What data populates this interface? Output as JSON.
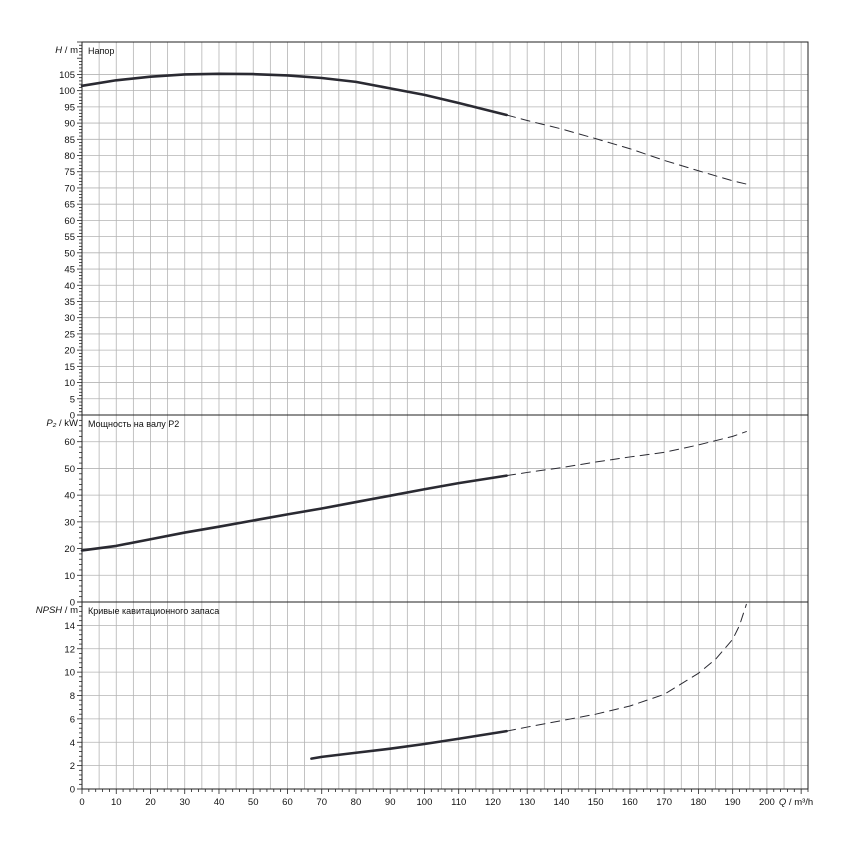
{
  "chart_data": {
    "type": "line",
    "grid": true,
    "x_axis": {
      "label_symbol": "Q",
      "label_unit": "m³/h",
      "range": [
        0,
        212
      ],
      "ticks": [
        0,
        10,
        20,
        30,
        40,
        50,
        60,
        70,
        80,
        90,
        100,
        110,
        120,
        130,
        140,
        150,
        160,
        170,
        180,
        190,
        200
      ],
      "tick_labels": [
        "0",
        "10",
        "20",
        "30",
        "40",
        "50",
        "60",
        "70",
        "80",
        "90",
        "100",
        "110",
        "120",
        "130",
        "140",
        "150",
        "160",
        "170",
        "180",
        "190",
        "200"
      ]
    },
    "panels": [
      {
        "id": "head",
        "title": "Напор",
        "y_symbol": "H",
        "y_unit": "m",
        "ylim": [
          0,
          115
        ],
        "yticks": [
          0,
          5,
          10,
          15,
          20,
          25,
          30,
          35,
          40,
          45,
          50,
          55,
          60,
          65,
          70,
          75,
          80,
          85,
          90,
          95,
          100,
          105
        ],
        "ytick_labels": [
          "0",
          "5",
          "10",
          "15",
          "20",
          "25",
          "30",
          "35",
          "40",
          "45",
          "50",
          "55",
          "60",
          "65",
          "70",
          "75",
          "80",
          "85",
          "90",
          "95",
          "100",
          "105"
        ],
        "series": [
          {
            "style": "solid",
            "x": [
              0,
              10,
              20,
              30,
              40,
              50,
              60,
              70,
              80,
              90,
              100,
              110,
              124
            ],
            "y": [
              101.5,
              103.2,
              104.3,
              105.0,
              105.2,
              105.1,
              104.7,
              103.9,
              102.7,
              100.7,
              98.7,
              96.2,
              92.5
            ]
          },
          {
            "style": "dashed",
            "x": [
              124,
              130,
              140,
              150,
              160,
              170,
              180,
              190,
              194
            ],
            "y": [
              92.5,
              90.8,
              88.2,
              85.2,
              82.1,
              78.5,
              75.3,
              72.2,
              71.2
            ]
          }
        ]
      },
      {
        "id": "power",
        "title": "Мощность на валу P2",
        "y_symbol": "P₂",
        "y_unit": "kW",
        "ylim": [
          0,
          70
        ],
        "yticks": [
          0,
          10,
          20,
          30,
          40,
          50,
          60
        ],
        "ytick_labels": [
          "0",
          "10",
          "20",
          "30",
          "40",
          "50",
          "60"
        ],
        "series": [
          {
            "style": "solid",
            "x": [
              0,
              10,
              20,
              30,
              40,
              50,
              60,
              70,
              80,
              90,
              100,
              110,
              124
            ],
            "y": [
              19.3,
              21.0,
              23.5,
              26.0,
              28.2,
              30.5,
              32.8,
              35.0,
              37.4,
              39.8,
              42.2,
              44.5,
              47.3
            ]
          },
          {
            "style": "dashed",
            "x": [
              124,
              130,
              140,
              150,
              160,
              170,
              180,
              190,
              194
            ],
            "y": [
              47.3,
              48.5,
              50.3,
              52.4,
              54.3,
              56.0,
              58.8,
              62.0,
              63.8
            ]
          }
        ]
      },
      {
        "id": "npsh",
        "title": "Кривые кавитационного запаса",
        "y_symbol": "NPSH",
        "y_unit": "m",
        "ylim": [
          0,
          16
        ],
        "yticks": [
          0,
          2,
          4,
          6,
          8,
          10,
          12,
          14
        ],
        "ytick_labels": [
          "0",
          "2",
          "4",
          "6",
          "8",
          "10",
          "12",
          "14"
        ],
        "series": [
          {
            "style": "solid",
            "x": [
              67,
              70,
              80,
              90,
              100,
              110,
              124
            ],
            "y": [
              2.6,
              2.75,
              3.1,
              3.45,
              3.85,
              4.3,
              4.95
            ]
          },
          {
            "style": "dashed",
            "x": [
              124,
              130,
              140,
              150,
              160,
              170,
              180,
              185,
              190,
              192,
              194
            ],
            "y": [
              4.95,
              5.3,
              5.85,
              6.4,
              7.1,
              8.1,
              9.9,
              11.1,
              12.8,
              14.0,
              15.8
            ]
          }
        ]
      }
    ]
  }
}
